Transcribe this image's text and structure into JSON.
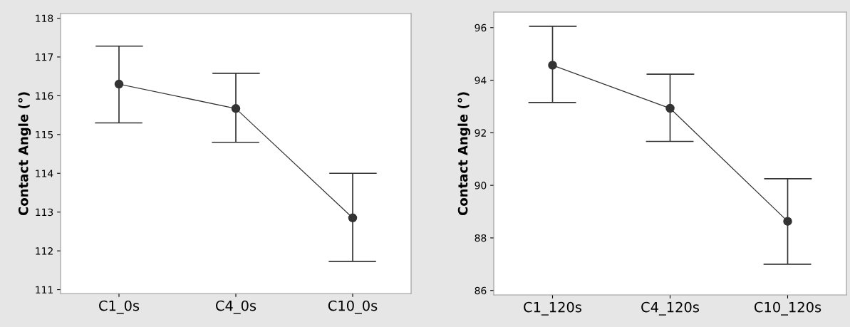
{
  "chart_data": [
    {
      "type": "line",
      "ylabel": "Contact Angle (°)",
      "categories": [
        "C1_0s",
        "C4_0s",
        "C10_0s"
      ],
      "ylim": [
        110.9,
        118.12
      ],
      "yticks": [
        111,
        112,
        113,
        114,
        115,
        116,
        117,
        118
      ],
      "marker": "circle",
      "grid": false,
      "legend": false,
      "series": [
        {
          "color": "#333333",
          "values": [
            116.3,
            115.67,
            112.85
          ],
          "errors": [
            [
              115.3,
              117.28
            ],
            [
              114.8,
              116.58
            ],
            [
              111.73,
              114.0
            ]
          ]
        }
      ]
    },
    {
      "type": "line",
      "ylabel": "Contact Angle (°)",
      "categories": [
        "C1_120s",
        "C4_120s",
        "C10_120s"
      ],
      "ylim": [
        85.83,
        96.59
      ],
      "yticks": [
        86,
        88,
        90,
        92,
        94,
        96
      ],
      "marker": "circle",
      "grid": false,
      "legend": false,
      "series": [
        {
          "color": "#333333",
          "values": [
            94.57,
            92.93,
            88.63
          ],
          "errors": [
            [
              93.15,
              96.05
            ],
            [
              91.67,
              94.23
            ],
            [
              87.0,
              90.25
            ]
          ]
        }
      ]
    }
  ]
}
